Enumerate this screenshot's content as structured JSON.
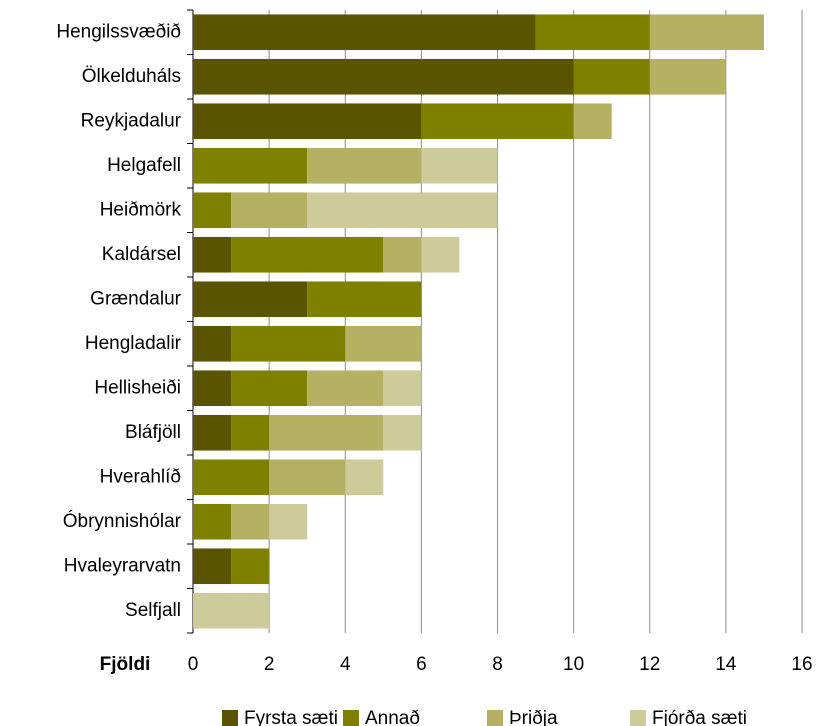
{
  "chart_data": {
    "type": "stacked_barh",
    "categories": [
      "Hengilssvæðið",
      "Ölkelduháls",
      "Reykjadalur",
      "Helgafell",
      "Heiðmörk",
      "Kaldársel",
      "Grændalur",
      "Hengladalir",
      "Hellisheiði",
      "Bláfjöll",
      "Hverahlíð",
      "Óbrynnishólar",
      "Hvaleyrarvatn",
      "Selfjall"
    ],
    "series": [
      {
        "name": "Fyrsta sæti",
        "color": "#5a5400",
        "values": [
          9,
          10,
          6,
          0,
          0,
          1,
          3,
          1,
          1,
          1,
          0,
          0,
          1,
          0
        ]
      },
      {
        "name": "Annað",
        "color": "#808000",
        "values": [
          3,
          2,
          4,
          3,
          1,
          4,
          3,
          3,
          2,
          1,
          2,
          1,
          1,
          0
        ]
      },
      {
        "name": "Þriðja",
        "color": "#b5b062",
        "values": [
          3,
          2,
          1,
          3,
          2,
          1,
          0,
          2,
          2,
          3,
          2,
          1,
          0,
          0
        ]
      },
      {
        "name": "Fjórða sæti",
        "color": "#cccb99",
        "values": [
          0,
          0,
          0,
          2,
          5,
          1,
          0,
          0,
          1,
          1,
          1,
          1,
          0,
          2
        ]
      }
    ],
    "x_label": "Fjöldi",
    "xlim": [
      0,
      16
    ],
    "xticks": [
      0,
      2,
      4,
      6,
      8,
      10,
      12,
      14,
      16
    ],
    "grid": true,
    "legend": "bottom"
  }
}
